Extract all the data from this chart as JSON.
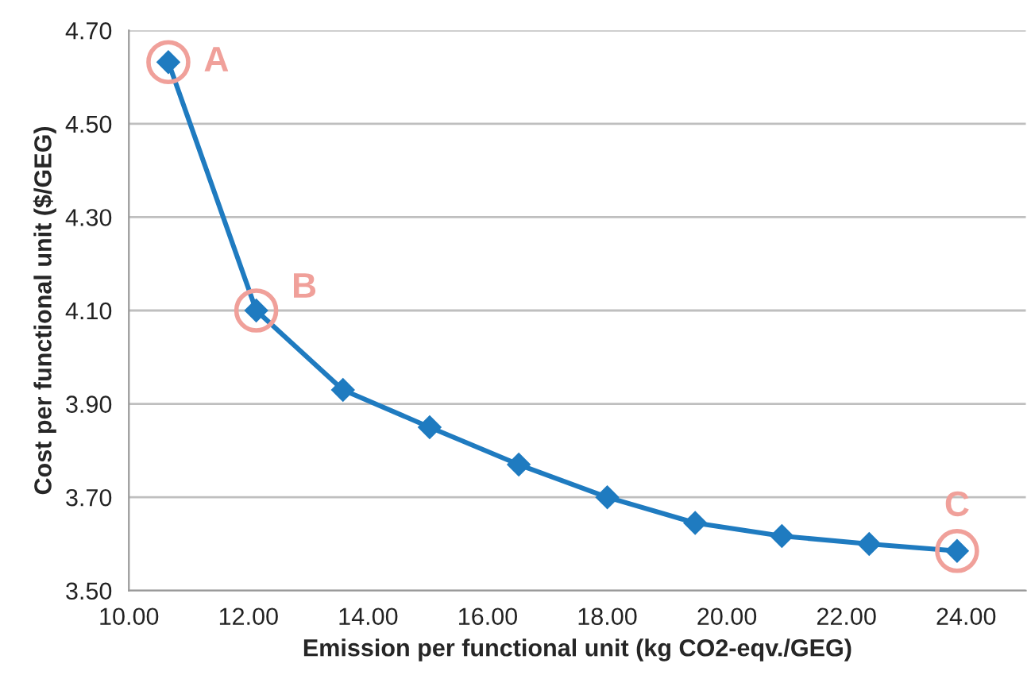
{
  "chart_data": {
    "type": "line",
    "xlabel": "Emission per functional unit (kg CO2-eqv./GEG)",
    "ylabel": "Cost per functional unit ($/GEG)",
    "x": [
      10.66,
      12.13,
      13.58,
      15.03,
      16.52,
      18.0,
      19.47,
      20.92,
      22.38,
      23.85
    ],
    "series": [
      {
        "color": "#1f7bc0",
        "values": [
          4.632,
          4.1,
          3.93,
          3.85,
          3.77,
          3.7,
          3.645,
          3.617,
          3.6,
          3.585
        ]
      }
    ],
    "marker": "diamond",
    "line_style": "solid",
    "grid": "y",
    "legend": false,
    "xlim": [
      10,
      25
    ],
    "ylim": [
      3.5,
      4.7
    ],
    "xticks": [
      {
        "value": 10,
        "label": "10.00"
      },
      {
        "value": 12,
        "label": "12.00"
      },
      {
        "value": 14,
        "label": "14.00"
      },
      {
        "value": 16,
        "label": "16.00"
      },
      {
        "value": 18,
        "label": "18.00"
      },
      {
        "value": 20,
        "label": "20.00"
      },
      {
        "value": 22,
        "label": "22.00"
      },
      {
        "value": 24,
        "label": "24.00"
      }
    ],
    "yticks": [
      {
        "value": 3.5,
        "label": "3.50"
      },
      {
        "value": 3.7,
        "label": "3.70"
      },
      {
        "value": 3.9,
        "label": "3.90"
      },
      {
        "value": 4.1,
        "label": "4.10"
      },
      {
        "value": 4.3,
        "label": "4.30"
      },
      {
        "value": 4.5,
        "label": "4.50"
      },
      {
        "value": 4.7,
        "label": "4.70"
      }
    ],
    "annotations": [
      {
        "text": "A",
        "x": 10.66,
        "y": 4.632
      },
      {
        "text": "B",
        "x": 12.13,
        "y": 4.1
      },
      {
        "text": "C",
        "x": 23.85,
        "y": 3.585
      }
    ]
  }
}
